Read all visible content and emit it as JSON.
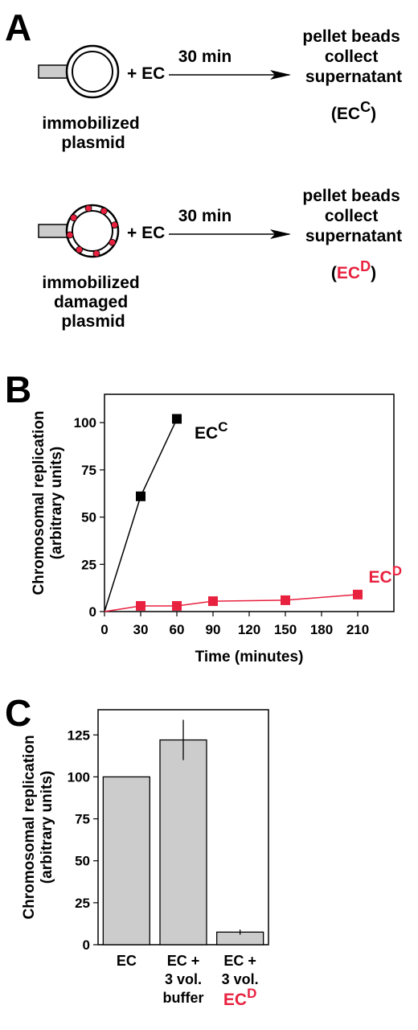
{
  "panelA": {
    "letter": "A",
    "row1": {
      "plus_ec": "+ EC",
      "time": "30 min",
      "left_label": [
        "immobilized",
        "plasmid"
      ],
      "right_label": [
        "pellet beads",
        "collect",
        "supernatant"
      ],
      "product_base": "EC",
      "product_sup": "C"
    },
    "row2": {
      "plus_ec": "+ EC",
      "time": "30 min",
      "left_label": [
        "immobilized",
        "damaged",
        "plasmid"
      ],
      "right_label": [
        "pellet beads",
        "collect",
        "supernatant"
      ],
      "product_base": "EC",
      "product_sup": "D"
    },
    "colors": {
      "damage": "#e8213f",
      "bead": "#cccccc"
    }
  },
  "panelB": {
    "letter": "B",
    "ecc_label_base": "EC",
    "ecc_label_sup": "C",
    "ecd_label_base": "EC",
    "ecd_label_sup": "D"
  },
  "panelC": {
    "letter": "C",
    "cat_lines": [
      [
        "EC"
      ],
      [
        "EC +",
        "3 vol.",
        "buffer"
      ],
      [
        "EC +",
        "3 vol."
      ]
    ],
    "cat3_red_base": "EC",
    "cat3_red_sup": "D"
  },
  "chart_data": [
    {
      "type": "line",
      "xlabel": "Time (minutes)",
      "ylabel": "Chromosomal replication (arbitrary units)",
      "xlim": [
        0,
        240
      ],
      "ylim": [
        0,
        115
      ],
      "xticks": [
        0,
        30,
        60,
        90,
        120,
        150,
        180,
        210
      ],
      "yticks": [
        0,
        25,
        50,
        75,
        100
      ],
      "series": [
        {
          "name": "EC^C",
          "color": "#000000",
          "x": [
            0,
            30,
            60
          ],
          "y": [
            0,
            61,
            102
          ]
        },
        {
          "name": "EC^D",
          "color": "#e8213f",
          "x": [
            0,
            30,
            60,
            90,
            150,
            210
          ],
          "y": [
            0,
            3,
            3,
            5.5,
            6,
            9
          ]
        }
      ]
    },
    {
      "type": "bar",
      "ylabel": "Chromosomal replication (arbitrary units)",
      "ylim": [
        0,
        140
      ],
      "yticks": [
        0,
        25,
        50,
        75,
        100,
        125
      ],
      "categories": [
        "EC",
        "EC + 3 vol. buffer",
        "EC + 3 vol. EC^D"
      ],
      "values": [
        100,
        122,
        7.5
      ],
      "errors": [
        null,
        12,
        1.5
      ],
      "bar_color": "#cccccc"
    }
  ]
}
